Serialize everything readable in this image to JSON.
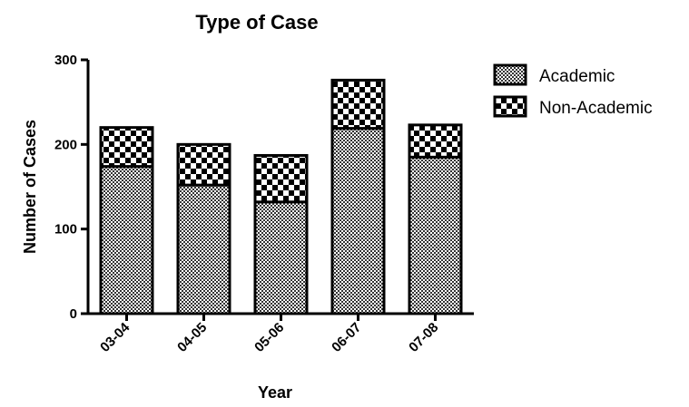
{
  "chart_data": {
    "type": "bar",
    "stacked": true,
    "title": "Type of Case",
    "xlabel": "Year",
    "ylabel": "Number of Cases",
    "ylim": [
      0,
      300
    ],
    "yticks": [
      0,
      100,
      200,
      300
    ],
    "categories": [
      "03-04",
      "04-05",
      "05-06",
      "06-07",
      "07-08"
    ],
    "series": [
      {
        "name": "Academic",
        "values": [
          174,
          152,
          132,
          219,
          185
        ],
        "pattern": "fine-checker"
      },
      {
        "name": "Non-Academic",
        "values": [
          46,
          48,
          55,
          57,
          38
        ],
        "pattern": "coarse-checker"
      }
    ],
    "legend": "top-right",
    "grid": false
  }
}
